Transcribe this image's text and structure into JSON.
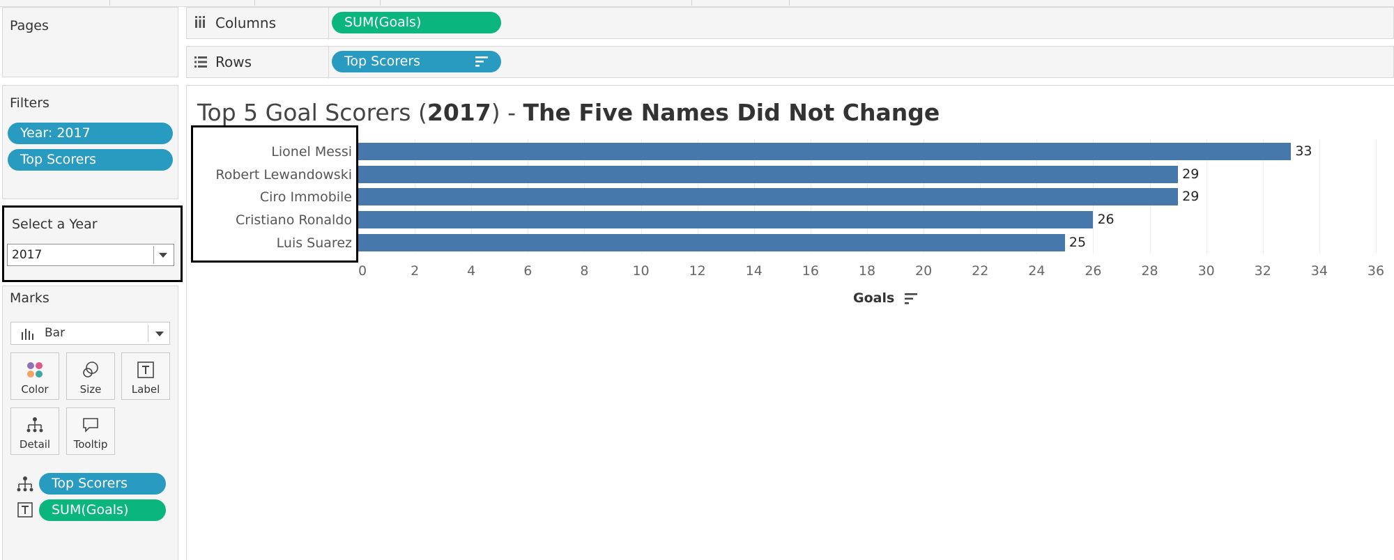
{
  "pages": {
    "title": "Pages"
  },
  "filters": {
    "title": "Filters",
    "pills": [
      "Year: 2017",
      "Top Scorers"
    ]
  },
  "select_year": {
    "title": "Select a Year",
    "value": "2017"
  },
  "marks": {
    "title": "Marks",
    "type": "Bar",
    "buttons": [
      "Color",
      "Size",
      "Label",
      "Detail",
      "Tooltip"
    ],
    "fields": [
      {
        "icon": "detail-icon",
        "label": "Top Scorers",
        "color": "#2a9bc0"
      },
      {
        "icon": "label-icon",
        "label": "SUM(Goals)",
        "color": "#0bb57e"
      }
    ]
  },
  "shelves": {
    "columns": {
      "label": "Columns",
      "pill": "SUM(Goals)"
    },
    "rows": {
      "label": "Rows",
      "pill": "Top Scorers"
    }
  },
  "view": {
    "title_pre": "Top 5 Goal Scorers (",
    "title_year": "2017",
    "title_mid": ") - ",
    "title_bold": "The Five Names Did Not Change"
  },
  "colors": {
    "bar": "#4778ac",
    "blue_pill": "#2a9bc0",
    "green_pill": "#0bb57e"
  },
  "chart_data": {
    "type": "bar",
    "orientation": "horizontal",
    "categories": [
      "Lionel Messi",
      "Robert Lewandowski",
      "Ciro Immobile",
      "Cristiano Ronaldo",
      "Luis Suarez"
    ],
    "values": [
      33,
      29,
      29,
      26,
      25
    ],
    "xlabel": "Goals",
    "xlim": [
      0,
      36
    ],
    "ticks": [
      0,
      2,
      4,
      6,
      8,
      10,
      12,
      14,
      16,
      18,
      20,
      22,
      24,
      26,
      28,
      30,
      32,
      34,
      36
    ],
    "grid": true
  }
}
